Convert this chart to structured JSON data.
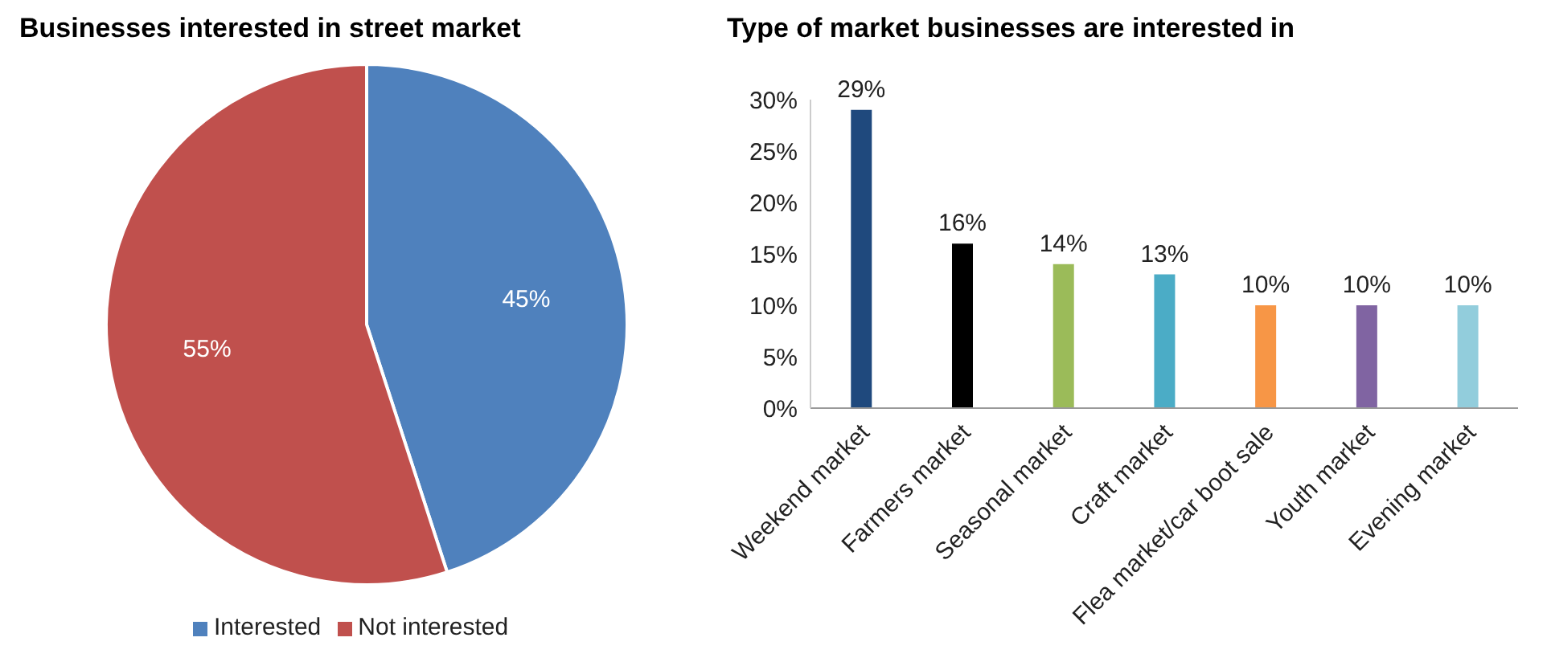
{
  "chart_data": [
    {
      "type": "pie",
      "title": "Businesses interested in street market",
      "categories": [
        "Interested",
        "Not interested"
      ],
      "values": [
        45,
        55
      ],
      "colors": [
        "#4f81bd",
        "#c0504d"
      ],
      "value_labels": [
        "45%",
        "55%"
      ],
      "legend": "bottom"
    },
    {
      "type": "bar",
      "title": "Type of market businesses are interested in",
      "categories": [
        "Weekend market",
        "Farmers market",
        "Seasonal market",
        "Craft market",
        "Flea market/car boot sale",
        "Youth market",
        "Evening market"
      ],
      "values": [
        29,
        16,
        14,
        13,
        10,
        10,
        10
      ],
      "colors": [
        "#1f497d",
        "#000000",
        "#9bbb59",
        "#4bacc6",
        "#f79646",
        "#8064a2",
        "#92cddc"
      ],
      "value_labels": [
        "29%",
        "16%",
        "14%",
        "13%",
        "10%",
        "10%",
        "10%"
      ],
      "ylim": [
        0,
        30
      ],
      "yticks": [
        {
          "value": 0,
          "label": "0%"
        },
        {
          "value": 5,
          "label": "5%"
        },
        {
          "value": 10,
          "label": "10%"
        },
        {
          "value": 15,
          "label": "15%"
        },
        {
          "value": 20,
          "label": "20%"
        },
        {
          "value": 25,
          "label": "25%"
        },
        {
          "value": 30,
          "label": "30%"
        }
      ],
      "grid": false,
      "legend": false
    }
  ]
}
